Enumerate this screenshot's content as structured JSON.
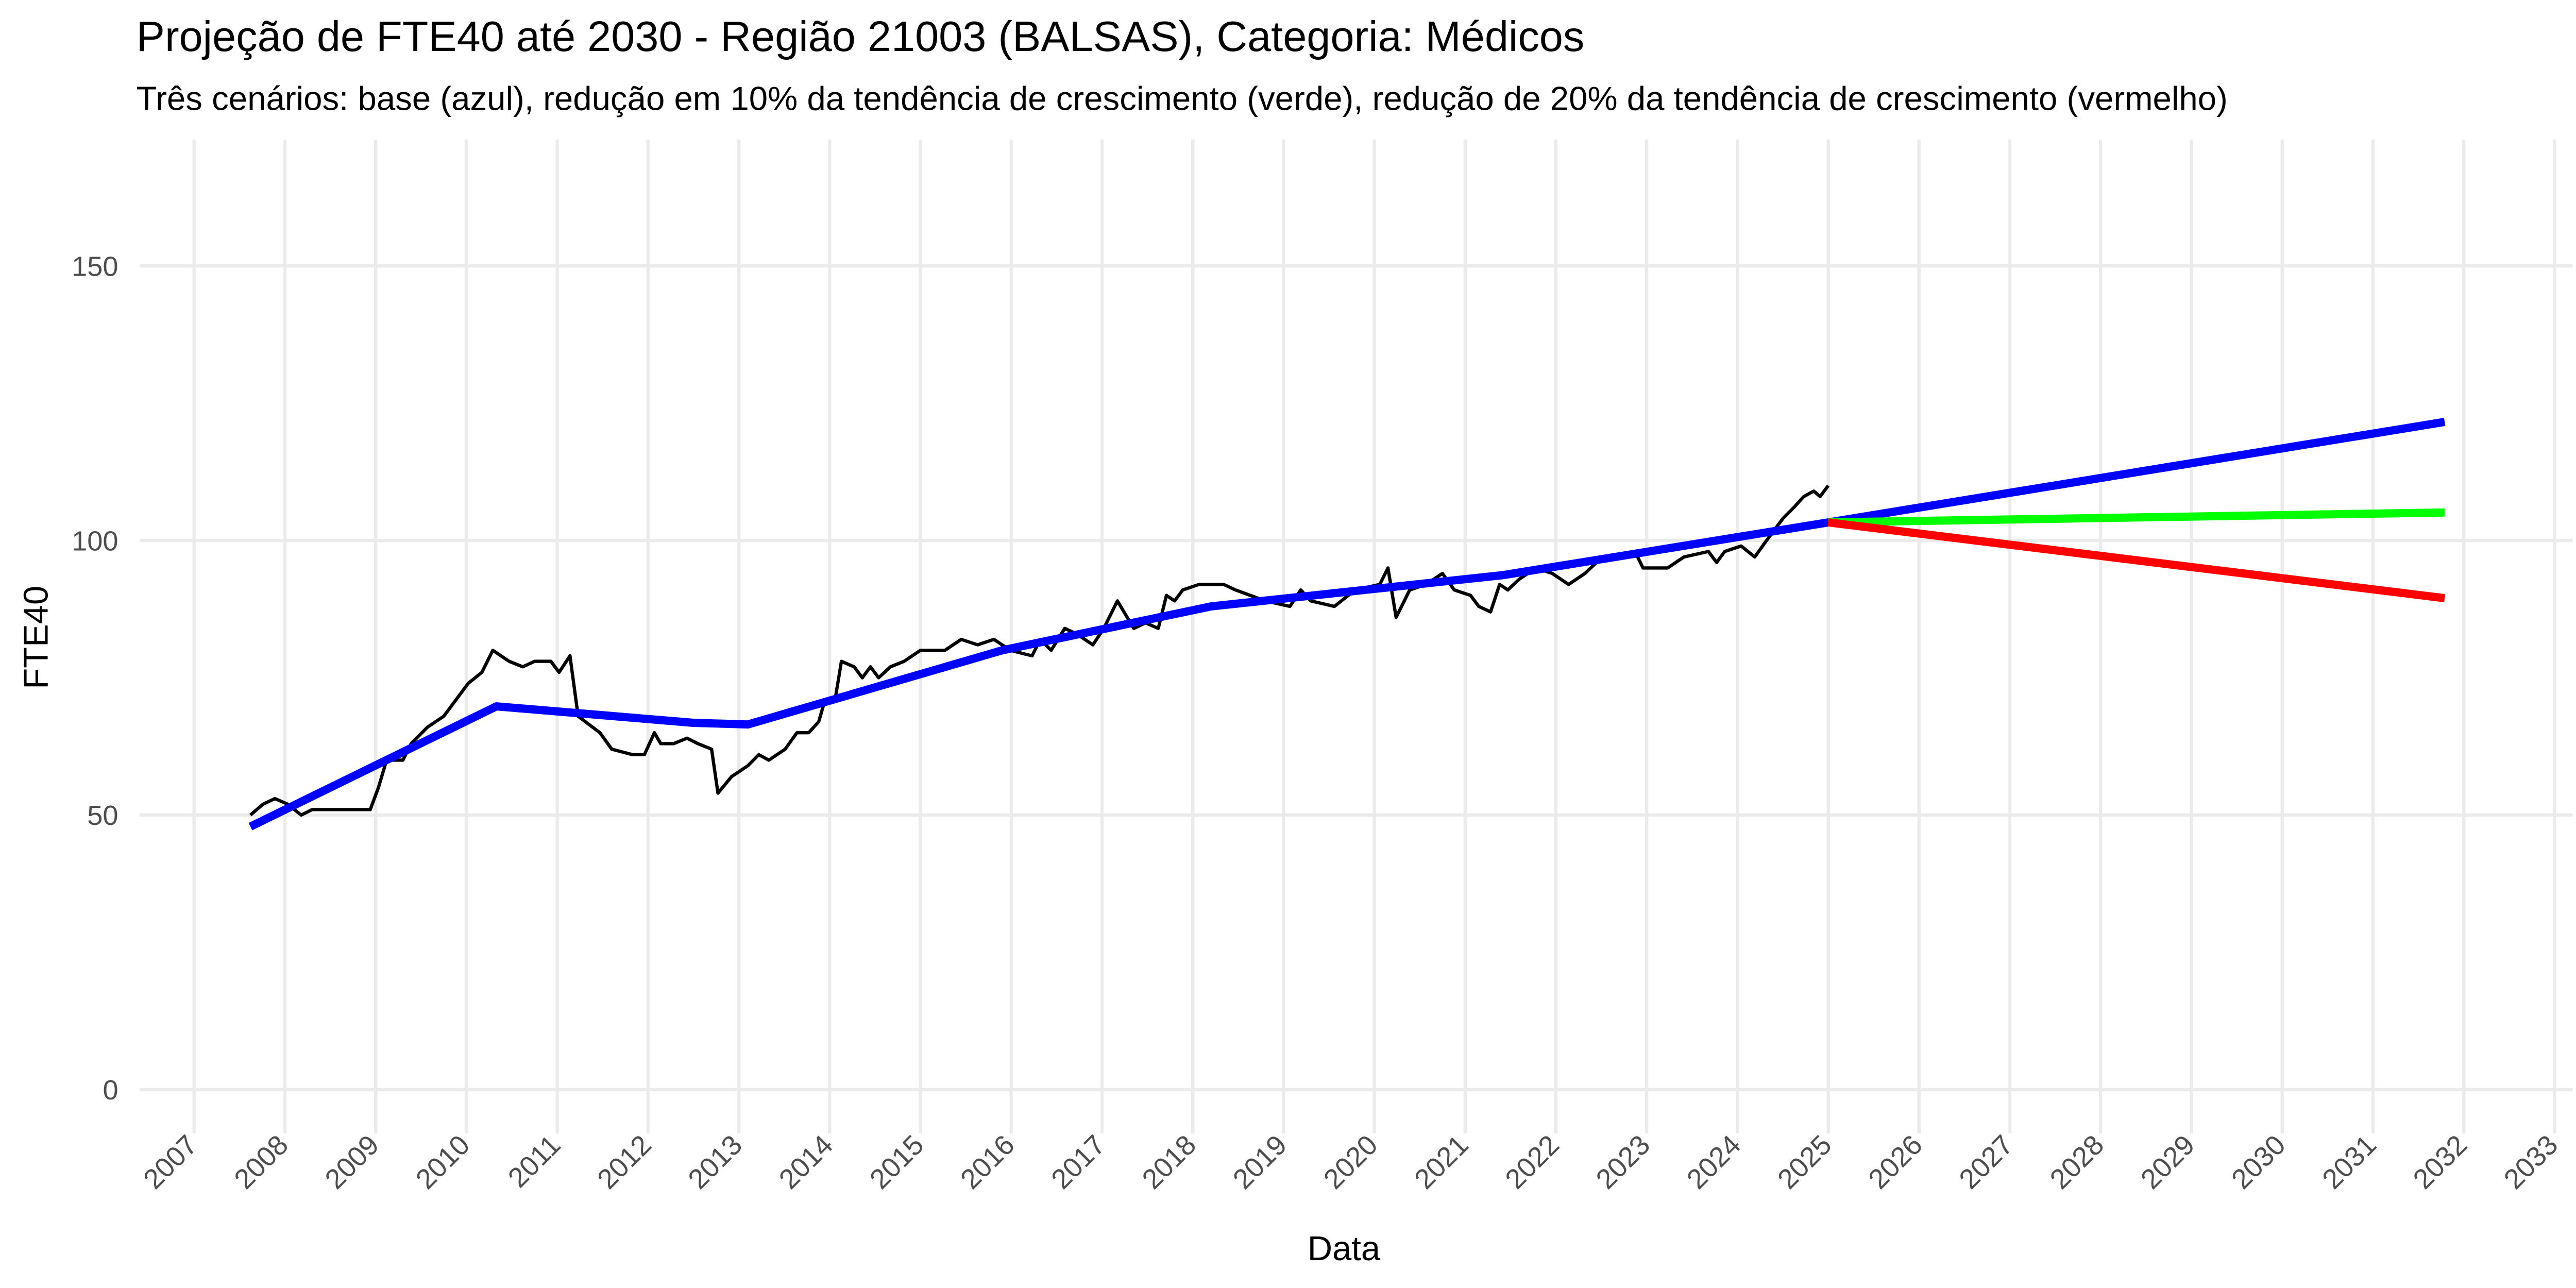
{
  "chart_data": {
    "type": "line",
    "title": "Projeção de FTE40 até 2030 - Região 21003 (BALSAS), Categoria: Médicos",
    "subtitle": "Três cenários: base (azul), redução em 10% da tendência de crescimento (verde), redução de 20% da tendência de crescimento (vermelho)",
    "x_label": "Data",
    "y_label": "FTE40",
    "xlim": [
      2006.4,
      2033.2
    ],
    "xticks": [
      2007,
      2008,
      2009,
      2010,
      2011,
      2012,
      2013,
      2014,
      2015,
      2016,
      2017,
      2018,
      2019,
      2020,
      2021,
      2022,
      2023,
      2024,
      2025,
      2026,
      2027,
      2028,
      2029,
      2030,
      2031,
      2032,
      2033
    ],
    "ylim": [
      -8,
      173
    ],
    "yticks": [
      0,
      50,
      100,
      150
    ],
    "grid": true,
    "series": [
      {
        "color": "#000000",
        "x": [
          2007.62,
          2007.76,
          2007.89,
          2008.03,
          2008.18,
          2008.3,
          2008.94,
          2009.03,
          2009.12,
          2009.3,
          2009.39,
          2009.57,
          2009.75,
          2009.84,
          2010.02,
          2010.17,
          2010.29,
          2010.47,
          2010.62,
          2010.75,
          2010.93,
          2011.02,
          2011.14,
          2011.23,
          2011.47,
          2011.6,
          2011.83,
          2011.96,
          2012.07,
          2012.14,
          2012.28,
          2012.43,
          2012.55,
          2012.7,
          2012.77,
          2012.92,
          2013.1,
          2013.22,
          2013.33,
          2013.51,
          2013.64,
          2013.77,
          2013.88,
          2013.95,
          2014.06,
          2014.13,
          2014.27,
          2014.36,
          2014.45,
          2014.54,
          2014.67,
          2014.82,
          2015.0,
          2015.27,
          2015.45,
          2015.63,
          2015.81,
          2015.99,
          2016.23,
          2016.32,
          2016.44,
          2016.59,
          2016.72,
          2016.9,
          2017.02,
          2017.17,
          2017.35,
          2017.48,
          2017.62,
          2017.71,
          2017.8,
          2017.89,
          2018.07,
          2018.34,
          2018.47,
          2018.8,
          2019.07,
          2019.19,
          2019.3,
          2019.56,
          2019.79,
          2020.06,
          2020.15,
          2020.24,
          2020.39,
          2020.57,
          2020.75,
          2020.88,
          2021.06,
          2021.15,
          2021.28,
          2021.38,
          2021.47,
          2021.6,
          2021.78,
          2021.96,
          2022.14,
          2022.32,
          2022.51,
          2022.87,
          2022.96,
          2023.23,
          2023.41,
          2023.68,
          2023.77,
          2023.86,
          2024.04,
          2024.19,
          2024.32,
          2024.5,
          2024.62,
          2024.73,
          2024.84,
          2024.91,
          2025.0
        ],
        "values": [
          50,
          52,
          53,
          52,
          50,
          51,
          51,
          55,
          60,
          60,
          63,
          66,
          68,
          70,
          74,
          76,
          80,
          78,
          77,
          78,
          78,
          76,
          79,
          68,
          65,
          62,
          61,
          61,
          65,
          63,
          63,
          64,
          63,
          62,
          54,
          57,
          59,
          61,
          60,
          62,
          65,
          65,
          67,
          71,
          71,
          78,
          77,
          75,
          77,
          75,
          77,
          78,
          80,
          80,
          82,
          81,
          82,
          80,
          79,
          82,
          80,
          84,
          83,
          81,
          84,
          89,
          84,
          85,
          84,
          90,
          89,
          91,
          92,
          92,
          91,
          89,
          88,
          91,
          89,
          88,
          91,
          92,
          95,
          86,
          91,
          92,
          94,
          91,
          90,
          88,
          87,
          92,
          91,
          93,
          95,
          94,
          92,
          94,
          97,
          98,
          95,
          95,
          97,
          98,
          96,
          98,
          99,
          97,
          100,
          104,
          106,
          108,
          109,
          108,
          110
        ]
      },
      {
        "color": "#0000ff",
        "x": [
          2007.62,
          2010.33,
          2012.5,
          2013.1,
          2015.9,
          2018.2,
          2021.42,
          2025.0,
          2031.79
        ],
        "values": [
          47.9,
          69.8,
          66.8,
          66.5,
          80,
          88,
          93.7,
          103.3,
          121.6
        ]
      },
      {
        "color": "#00ff00",
        "x": [
          2025.0,
          2031.79
        ],
        "values": [
          103.3,
          105.1
        ]
      },
      {
        "color": "#ff0000",
        "x": [
          2025.0,
          2031.79
        ],
        "values": [
          103.3,
          89.5
        ]
      }
    ]
  }
}
